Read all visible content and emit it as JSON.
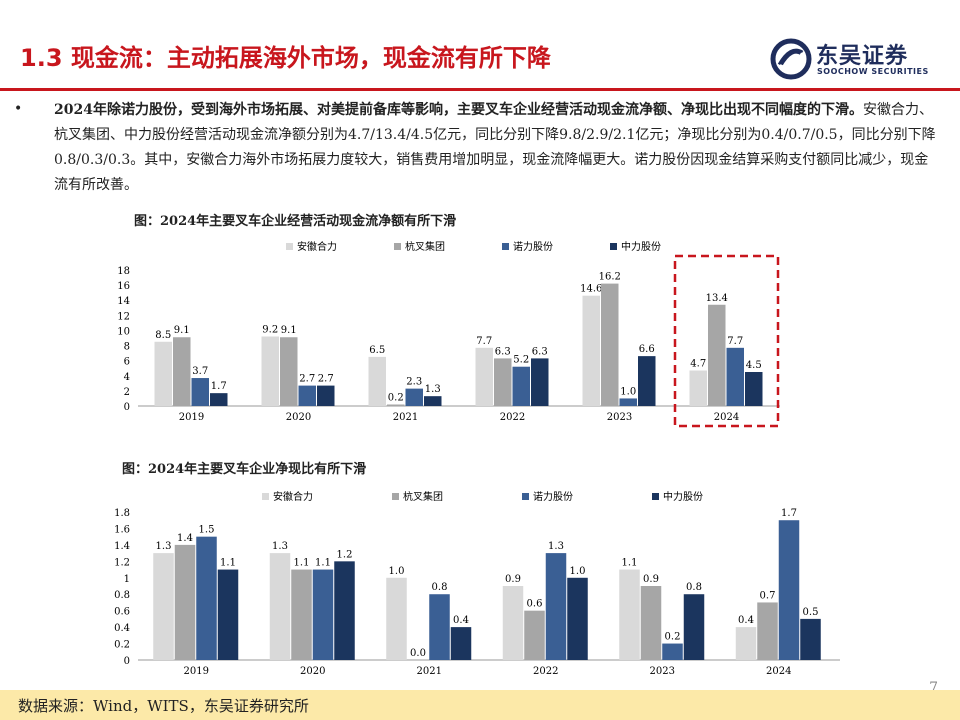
{
  "header": {
    "title": "1.3 现金流：主动拓展海外市场，现金流有所下降",
    "logo_cn": "东吴证券",
    "logo_en": "SOOCHOW SECURITIES"
  },
  "body_text": {
    "lead": "2024年除诺力股份，受到海外市场拓展、对美提前备库等影响，主要叉车企业经营活动现金流净额、净现比出现不同幅度的下滑。",
    "rest": "安徽合力、杭叉集团、中力股份经营活动现金流净额分别为4.7/13.4/4.5亿元，同比分别下降9.8/2.9/2.1亿元；净现比分别为0.4/0.7/0.5，同比分别下降0.8/0.3/0.3。其中，安徽合力海外市场拓展力度较大，销售费用增加明显，现金流降幅更大。诺力股份因现金结算采购支付额同比减少，现金流有所改善。"
  },
  "colors": {
    "heli": "#D9D9D9",
    "hangcha": "#A6A6A6",
    "noli": "#3A5F94",
    "zhongli": "#1B355E",
    "accent_red": "#C8161D",
    "footer_bg": "#FCE9A8"
  },
  "chart_data": [
    {
      "type": "bar",
      "title": "图：2024年主要叉车企业经营活动现金流净额有所下滑",
      "categories": [
        "2019",
        "2020",
        "2021",
        "2022",
        "2023",
        "2024"
      ],
      "series": [
        {
          "name": "安徽合力",
          "values": [
            8.5,
            9.2,
            6.5,
            7.7,
            14.6,
            4.7
          ]
        },
        {
          "name": "杭叉集团",
          "values": [
            9.1,
            9.1,
            0.2,
            6.3,
            16.2,
            13.4
          ]
        },
        {
          "name": "诺力股份",
          "values": [
            3.7,
            2.7,
            2.3,
            5.2,
            1.0,
            7.7
          ]
        },
        {
          "name": "中力股份",
          "values": [
            1.7,
            2.7,
            1.3,
            6.3,
            6.6,
            4.5
          ]
        }
      ],
      "data_labels": [
        [
          "8.5",
          "9.2",
          "6.5",
          "7.7",
          "14.6",
          "4.7"
        ],
        [
          "9.1",
          "9.1",
          "0.2",
          "6.3",
          "16.2",
          "13.4"
        ],
        [
          "3.7",
          "2.7",
          "2.3",
          "5.2",
          "1.0",
          "7.7"
        ],
        [
          "1.7",
          "2.7",
          "1.3",
          "6.3",
          "6.6",
          "4.5"
        ]
      ],
      "yticks": [
        "0",
        "2",
        "4",
        "6",
        "8",
        "10",
        "12",
        "14",
        "16",
        "18"
      ],
      "ylim": [
        0,
        18
      ],
      "highlight_category": "2024",
      "legend_position": "top"
    },
    {
      "type": "bar",
      "title": "图：2024年主要叉车企业净现比有所下滑",
      "categories": [
        "2019",
        "2020",
        "2021",
        "2022",
        "2023",
        "2024"
      ],
      "series": [
        {
          "name": "安徽合力",
          "values": [
            1.3,
            1.3,
            1.0,
            0.9,
            1.1,
            0.4
          ]
        },
        {
          "name": "杭叉集团",
          "values": [
            1.4,
            1.1,
            0.0,
            0.6,
            0.9,
            0.7
          ]
        },
        {
          "name": "诺力股份",
          "values": [
            1.5,
            1.1,
            0.8,
            1.3,
            0.2,
            1.7
          ]
        },
        {
          "name": "中力股份",
          "values": [
            1.1,
            1.2,
            0.4,
            1.0,
            0.8,
            0.5
          ]
        }
      ],
      "data_labels": [
        [
          "1.3",
          "1.3",
          "1.0",
          "0.9",
          "1.1",
          "0.4"
        ],
        [
          "1.4",
          "1.1",
          "0.0",
          "0.6",
          "0.9",
          "0.7"
        ],
        [
          "1.5",
          "1.1",
          "0.8",
          "1.3",
          "0.2",
          "1.7"
        ],
        [
          "1.1",
          "1.2",
          "0.4",
          "1.0",
          "0.8",
          "0.5"
        ]
      ],
      "yticks": [
        "0",
        "0.2",
        "0.4",
        "0.6",
        "0.8",
        "1",
        "1.2",
        "1.4",
        "1.6",
        "1.8"
      ],
      "ylim": [
        0,
        1.8
      ],
      "legend_position": "top"
    }
  ],
  "footer": {
    "source": "数据来源：Wind，WITS，东吴证券研究所",
    "page_number": "7"
  }
}
